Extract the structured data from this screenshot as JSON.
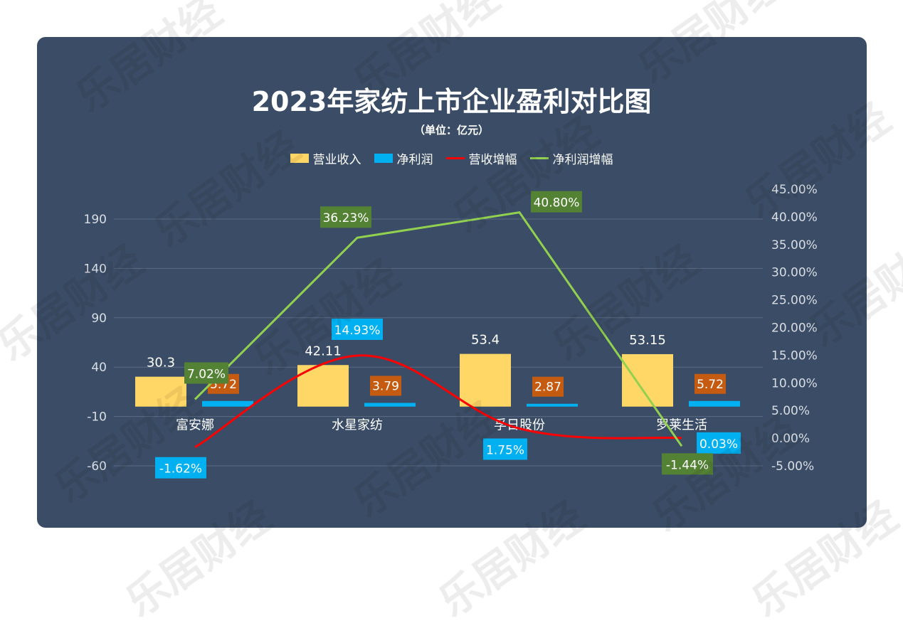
{
  "watermark": "乐居财经",
  "chart_data": {
    "type": "bar",
    "title": "2023年家纺上市企业盈利对比图",
    "subtitle": "（单位：亿元）",
    "categories": [
      "富安娜",
      "水星家纺",
      "孚日股份",
      "罗莱生活"
    ],
    "series": [
      {
        "name": "营业收入",
        "kind": "bar",
        "axis": "left",
        "values": [
          30.3,
          42.11,
          53.4,
          53.15
        ],
        "labels": [
          "30.3",
          "42.11",
          "53.4",
          "53.15"
        ],
        "color": "#ffd766"
      },
      {
        "name": "净利润",
        "kind": "bar",
        "axis": "left",
        "values": [
          5.72,
          3.79,
          2.87,
          5.72
        ],
        "labels": [
          "5.72",
          "3.79",
          "2.87",
          "5.72"
        ],
        "color": "#00b0f0"
      },
      {
        "name": "营收增幅",
        "kind": "line",
        "axis": "right",
        "values": [
          -1.62,
          14.93,
          1.75,
          0.03
        ],
        "labels": [
          "-1.62%",
          "14.93%",
          "1.75%",
          "0.03%"
        ],
        "color": "#ff0000"
      },
      {
        "name": "净利润增幅",
        "kind": "line",
        "axis": "right",
        "values": [
          7.02,
          36.23,
          40.8,
          -1.44
        ],
        "labels": [
          "7.02%",
          "36.23%",
          "40.80%",
          "-1.44%"
        ],
        "color": "#92d050"
      }
    ],
    "left_axis": {
      "ticks": [
        "190",
        "140",
        "90",
        "40",
        "-10",
        "-60"
      ],
      "ylim": [
        -60,
        190
      ]
    },
    "right_axis": {
      "ticks": [
        "45.00%",
        "40.00%",
        "35.00%",
        "30.00%",
        "25.00%",
        "20.00%",
        "15.00%",
        "10.00%",
        "5.00%",
        "0.00%",
        "-5.00%"
      ],
      "ylim": [
        -5,
        45
      ]
    },
    "legend_position": "top",
    "colors": {
      "background": "#3b4d66",
      "grid": "#5a6b82",
      "axis_text": "#d9dde4",
      "net_label_bg": "#c55a11",
      "red_label_bg": "#00b0f0",
      "green_label_bg": "#548235"
    }
  }
}
